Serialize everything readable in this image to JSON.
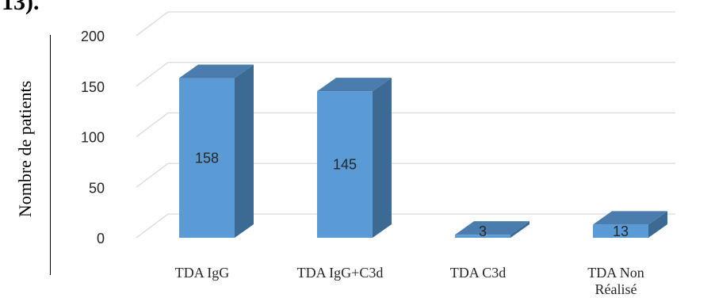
{
  "fragment_text": "13).",
  "chart_data": {
    "type": "bar",
    "title": "",
    "xlabel": "",
    "ylabel": "Nombre de patients",
    "ylim": [
      0,
      200
    ],
    "yticks": [
      "0",
      "50",
      "100",
      "150",
      "200"
    ],
    "categories": [
      "TDA IgG",
      "TDA IgG+C3d",
      "TDA C3d",
      "TDA Non Réalisé"
    ],
    "values": [
      158,
      145,
      3,
      13
    ],
    "style": "3d-column",
    "grid": true,
    "colors": {
      "front": "#5B9BD5",
      "side": "#3C6A93",
      "top": "#4A7DAE",
      "grid": "#D9D9D9"
    }
  }
}
